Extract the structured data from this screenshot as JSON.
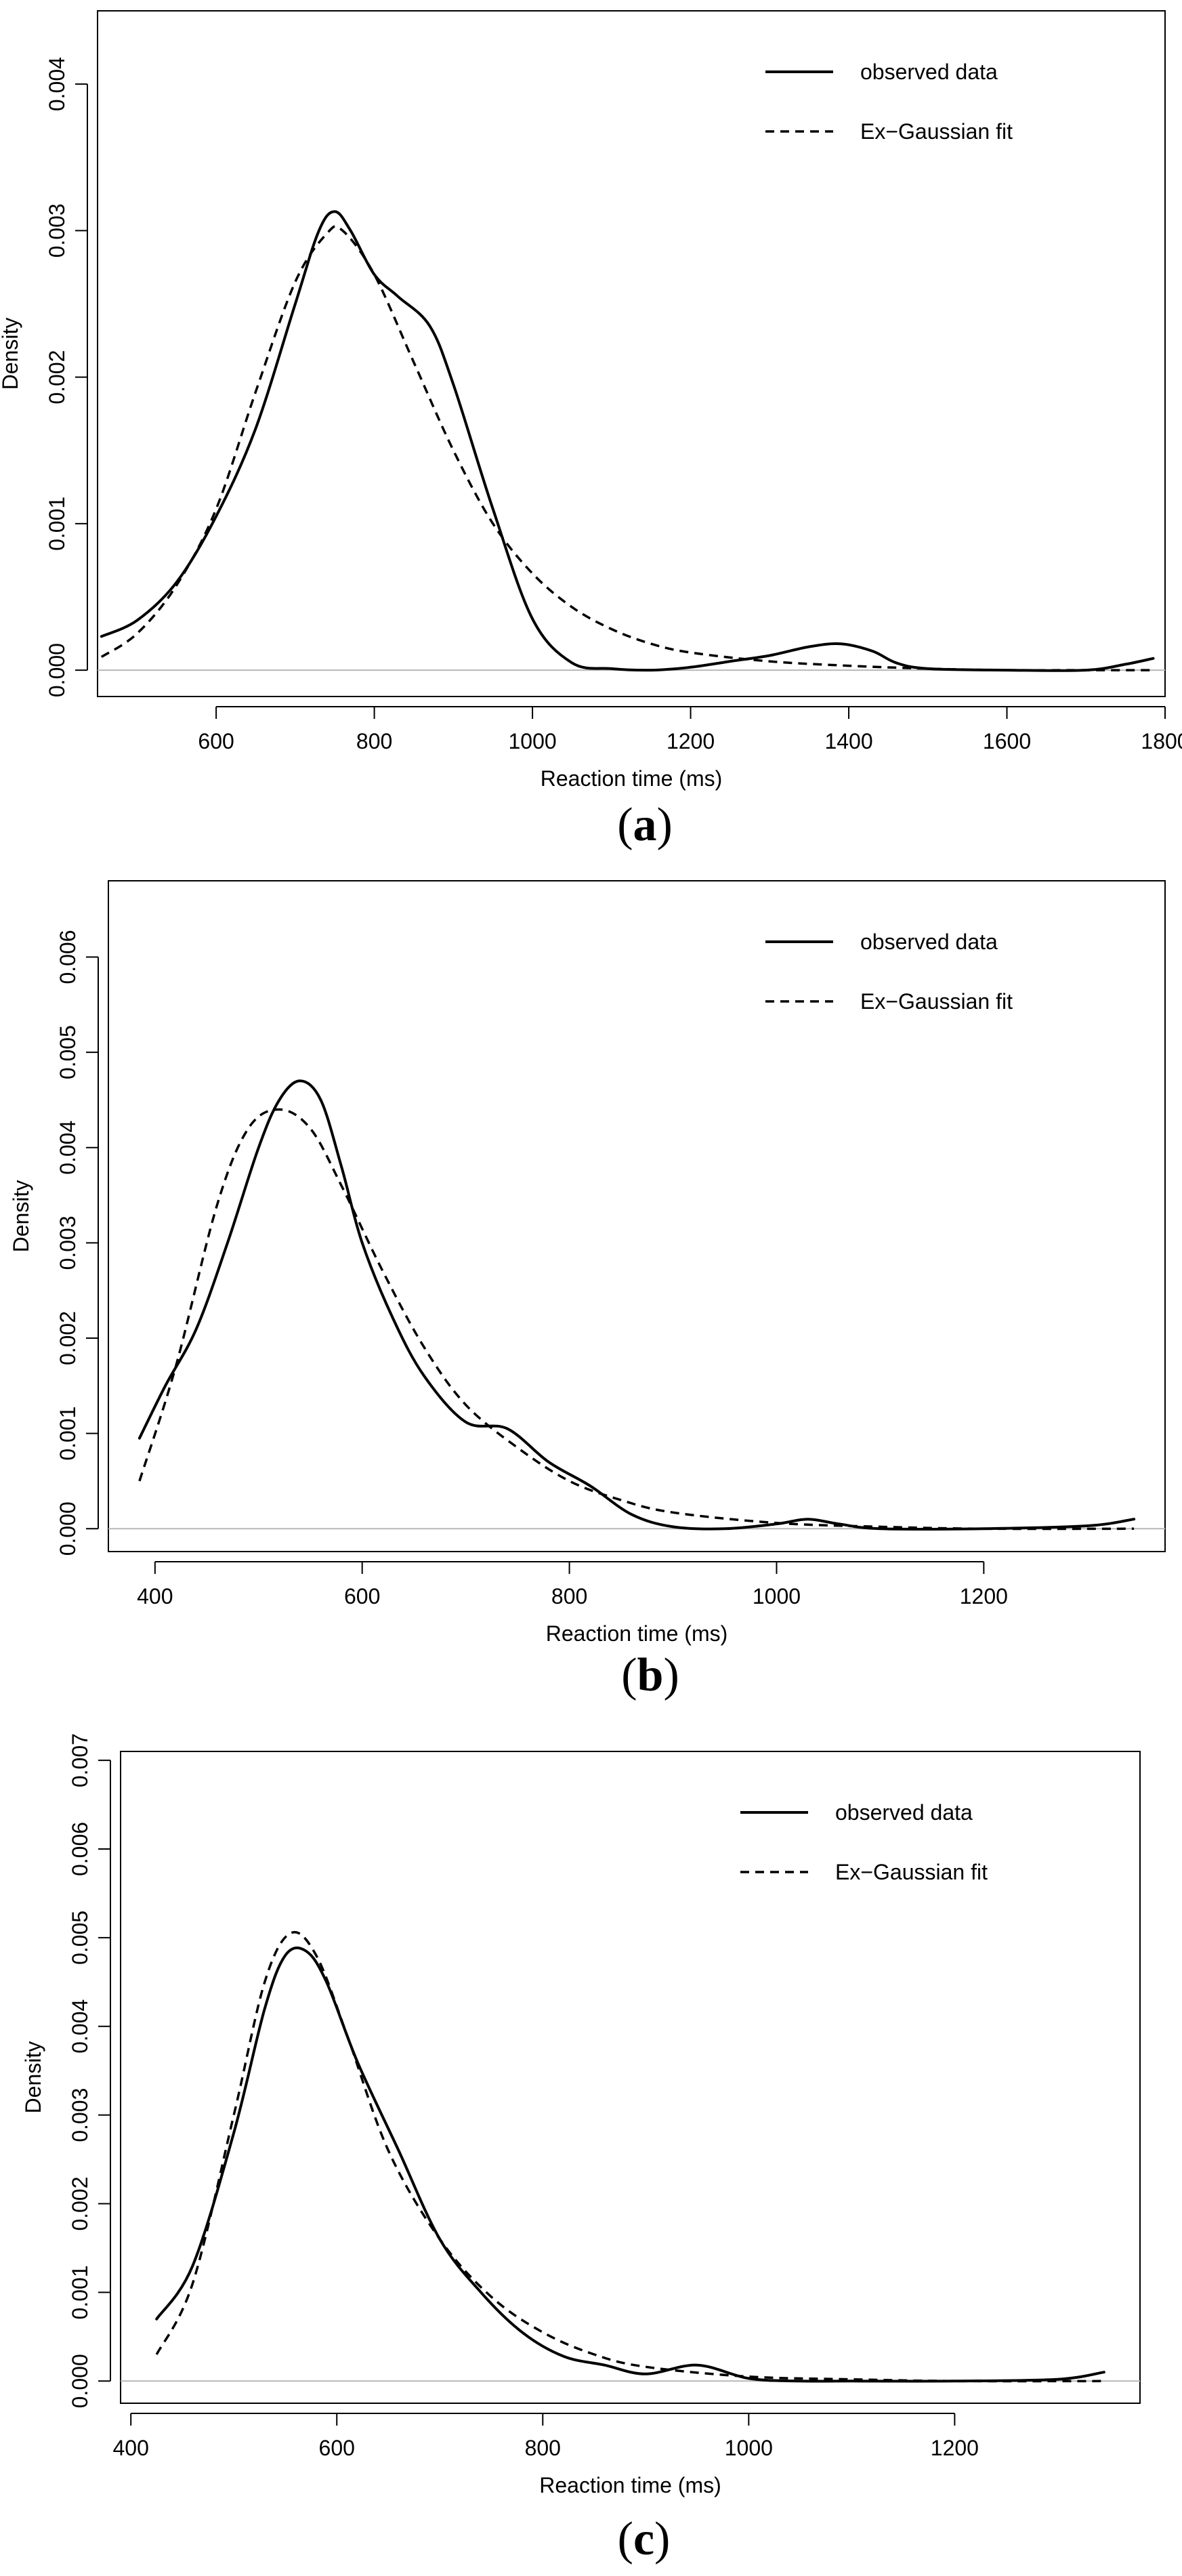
{
  "chart_data": [
    {
      "type": "line",
      "panel_label": "a",
      "caption": {
        "open": "(",
        "letter": "a",
        "close": ")"
      },
      "title": "",
      "xlabel": "Reaction time (ms)",
      "ylabel": "Density",
      "xlim": [
        450,
        1800
      ],
      "ylim": [
        -0.00018,
        0.0045
      ],
      "x_ticks": [
        600,
        800,
        1000,
        1200,
        1400,
        1600,
        1800
      ],
      "y_ticks": [
        0.0,
        0.001,
        0.002,
        0.003,
        0.004
      ],
      "y_tick_labels": [
        "0.000",
        "0.001",
        "0.002",
        "0.003",
        "0.004"
      ],
      "grid": false,
      "baseline": 0,
      "legend": {
        "position": "top-right",
        "entries": [
          "observed data",
          "Ex−Gaussian fit"
        ]
      },
      "series": [
        {
          "name": "observed data",
          "style": "solid",
          "x": [
            455,
            500,
            550,
            600,
            650,
            700,
            730,
            750,
            770,
            800,
            830,
            870,
            900,
            950,
            1000,
            1050,
            1100,
            1150,
            1200,
            1250,
            1300,
            1350,
            1390,
            1430,
            1460,
            1500,
            1600,
            1700,
            1750,
            1785
          ],
          "y": [
            0.00023,
            0.00034,
            0.0006,
            0.00105,
            0.00165,
            0.0025,
            0.003,
            0.00313,
            0.003,
            0.0027,
            0.00255,
            0.00235,
            0.00195,
            0.0011,
            0.00035,
            5e-05,
            1e-05,
            0.0,
            2e-05,
            6e-05,
            0.0001,
            0.00016,
            0.00018,
            0.00013,
            5e-05,
            1e-05,
            0.0,
            0.0,
            4e-05,
            8e-05
          ]
        },
        {
          "name": "Ex−Gaussian fit",
          "style": "dashed",
          "x": [
            455,
            500,
            550,
            600,
            650,
            700,
            740,
            760,
            800,
            850,
            900,
            950,
            1000,
            1050,
            1100,
            1150,
            1200,
            1300,
            1400,
            1500,
            1600,
            1700,
            1785
          ],
          "y": [
            9e-05,
            0.00025,
            0.00058,
            0.0011,
            0.0019,
            0.00265,
            0.00298,
            0.003,
            0.0027,
            0.0021,
            0.0015,
            0.001,
            0.00066,
            0.00043,
            0.00028,
            0.00018,
            0.00012,
            6e-05,
            3e-05,
            1e-05,
            0.0,
            0.0,
            0.0
          ]
        }
      ]
    },
    {
      "type": "line",
      "panel_label": "b",
      "caption": {
        "open": "(",
        "letter": "b",
        "close": ")"
      },
      "title": "",
      "xlabel": "Reaction time (ms)",
      "ylabel": "Density",
      "xlim": [
        355,
        1375
      ],
      "ylim": [
        -0.00024,
        0.0068
      ],
      "x_ticks": [
        400,
        600,
        800,
        1000,
        1200
      ],
      "y_ticks": [
        0.0,
        0.001,
        0.002,
        0.003,
        0.004,
        0.005,
        0.006
      ],
      "y_tick_labels": [
        "0.000",
        "0.001",
        "0.002",
        "0.003",
        "0.004",
        "0.005",
        "0.006"
      ],
      "grid": false,
      "baseline": 0,
      "legend": {
        "position": "top-right",
        "entries": [
          "observed data",
          "Ex−Gaussian fit"
        ]
      },
      "series": [
        {
          "name": "observed data",
          "style": "solid",
          "x": [
            385,
            410,
            440,
            470,
            500,
            520,
            540,
            560,
            580,
            600,
            630,
            660,
            700,
            740,
            780,
            820,
            860,
            900,
            950,
            1000,
            1030,
            1060,
            1100,
            1200,
            1300,
            1345
          ],
          "y": [
            0.00095,
            0.0015,
            0.0021,
            0.003,
            0.004,
            0.0045,
            0.0047,
            0.0045,
            0.0038,
            0.003,
            0.0022,
            0.0016,
            0.00112,
            0.00105,
            0.0007,
            0.00045,
            0.00015,
            2e-05,
            0.0,
            5e-05,
            0.0001,
            5e-05,
            0.0,
            0.0,
            3e-05,
            0.0001
          ]
        },
        {
          "name": "Ex−Gaussian fit",
          "style": "dashed",
          "x": [
            385,
            420,
            460,
            490,
            520,
            550,
            580,
            620,
            660,
            700,
            750,
            800,
            850,
            900,
            1000,
            1100,
            1200,
            1345
          ],
          "y": [
            0.0005,
            0.0017,
            0.0034,
            0.0042,
            0.0044,
            0.0042,
            0.0036,
            0.0027,
            0.0019,
            0.0013,
            0.00085,
            0.0005,
            0.0003,
            0.00017,
            6e-05,
            2e-05,
            0.0,
            0.0
          ]
        }
      ]
    },
    {
      "type": "line",
      "panel_label": "c",
      "caption": {
        "open": "(",
        "letter": "c",
        "close": ")"
      },
      "title": "",
      "xlabel": "Reaction time (ms)",
      "ylabel": "Density",
      "xlim": [
        390,
        1380
      ],
      "ylim": [
        -0.00025,
        0.0071
      ],
      "x_ticks": [
        400,
        600,
        800,
        1000,
        1200
      ],
      "y_ticks": [
        0.0,
        0.001,
        0.002,
        0.003,
        0.004,
        0.005,
        0.006,
        0.007
      ],
      "y_tick_labels": [
        "0.000",
        "0.001",
        "0.002",
        "0.003",
        "0.004",
        "0.005",
        "0.006",
        "0.007"
      ],
      "grid": false,
      "baseline": 0,
      "legend": {
        "position": "top-right",
        "entries": [
          "observed data",
          "Ex−Gaussian fit"
        ]
      },
      "series": [
        {
          "name": "observed data",
          "style": "solid",
          "x": [
            425,
            460,
            500,
            530,
            550,
            570,
            590,
            620,
            660,
            700,
            740,
            780,
            820,
            860,
            900,
            950,
            1000,
            1050,
            1100,
            1200,
            1300,
            1345
          ],
          "y": [
            0.0007,
            0.0013,
            0.0028,
            0.0042,
            0.0048,
            0.00485,
            0.0045,
            0.0036,
            0.0026,
            0.0016,
            0.001,
            0.00055,
            0.00028,
            0.00018,
            8e-05,
            0.00018,
            3e-05,
            0.0,
            0.0,
            0.0,
            2e-05,
            0.0001
          ]
        },
        {
          "name": "Ex−Gaussian fit",
          "style": "dashed",
          "x": [
            425,
            460,
            500,
            530,
            555,
            580,
            610,
            650,
            700,
            750,
            800,
            850,
            900,
            1000,
            1100,
            1200,
            1345
          ],
          "y": [
            0.0003,
            0.0011,
            0.003,
            0.0045,
            0.00505,
            0.0048,
            0.0039,
            0.0026,
            0.0016,
            0.00095,
            0.00055,
            0.0003,
            0.00016,
            5e-05,
            2e-05,
            0.0,
            0.0
          ]
        }
      ]
    }
  ]
}
